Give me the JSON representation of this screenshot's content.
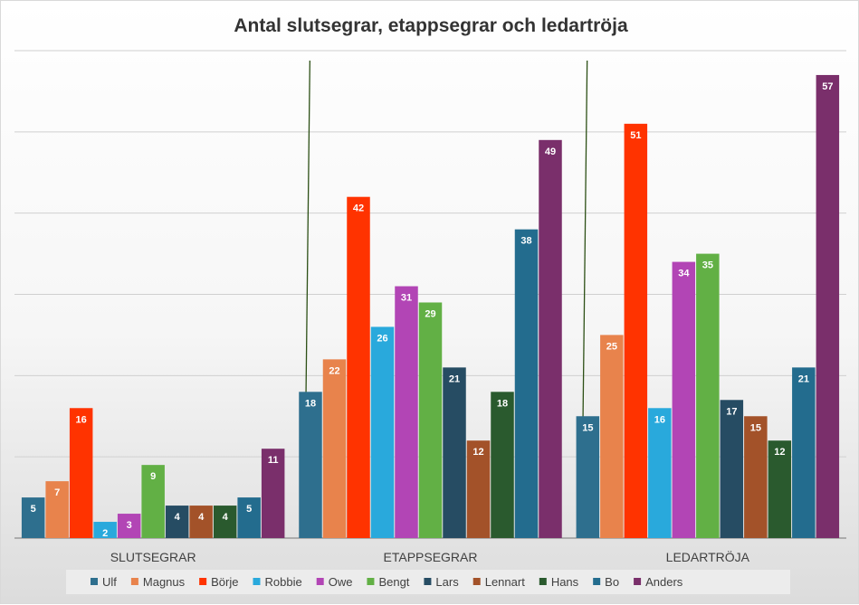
{
  "chart_data": {
    "type": "bar",
    "title": "Antal slutsegrar, etappsegrar och ledartröja",
    "xlabel": "",
    "ylabel": "",
    "ylim": [
      0,
      60
    ],
    "grid": true,
    "legend_position": "bottom",
    "categories": [
      "SLUTSEGRAR",
      "ETAPPSEGRAR",
      "LEDARTRÖJA"
    ],
    "series": [
      {
        "name": "Ulf",
        "color": "#2e6f8e",
        "values": [
          5,
          18,
          15
        ]
      },
      {
        "name": "Magnus",
        "color": "#e8834c",
        "values": [
          7,
          22,
          25
        ]
      },
      {
        "name": "Börje",
        "color": "#ff3300",
        "values": [
          16,
          42,
          51
        ]
      },
      {
        "name": "Robbie",
        "color": "#29a9dc",
        "values": [
          2,
          26,
          16
        ]
      },
      {
        "name": "Owe",
        "color": "#b245b5",
        "values": [
          3,
          31,
          34
        ]
      },
      {
        "name": "Bengt",
        "color": "#62b045",
        "values": [
          9,
          29,
          35
        ]
      },
      {
        "name": "Lars",
        "color": "#264c63",
        "values": [
          4,
          21,
          17
        ]
      },
      {
        "name": "Lennart",
        "color": "#a35229",
        "values": [
          4,
          12,
          15
        ]
      },
      {
        "name": "Hans",
        "color": "#2a5a2e",
        "values": [
          4,
          18,
          12
        ]
      },
      {
        "name": "Bo",
        "color": "#236c8e",
        "values": [
          5,
          38,
          21
        ]
      },
      {
        "name": "Anders",
        "color": "#7a2f6b",
        "values": [
          11,
          49,
          57
        ]
      }
    ]
  }
}
